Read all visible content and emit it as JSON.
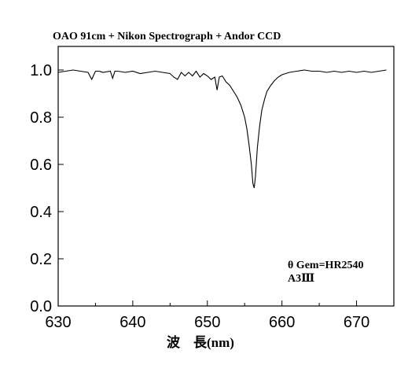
{
  "chart_data": {
    "type": "line",
    "title": "OAO 91cm + Nikon Spectrograph + Andor CCD",
    "xlabel": "波　長(nm)",
    "ylabel": "",
    "xlim": [
      630,
      675
    ],
    "ylim": [
      0.0,
      1.1
    ],
    "xticks": [
      630,
      640,
      650,
      660,
      670
    ],
    "yticks": [
      0.0,
      0.2,
      0.4,
      0.6,
      0.8,
      1.0
    ],
    "xtick_labels": [
      "630",
      "640",
      "650",
      "660",
      "670"
    ],
    "ytick_labels": [
      "0.0",
      "0.2",
      "0.4",
      "0.6",
      "0.8",
      "1.0"
    ],
    "grid": false,
    "annotations": [
      "θ Gem=HR2540",
      "A3Ⅲ"
    ],
    "series": [
      {
        "x": [
          630.0,
          631.0,
          632.0,
          633.0,
          634.0,
          634.5,
          635.0,
          635.5,
          636.0,
          637.0,
          637.3,
          637.6,
          638.0,
          639.0,
          640.0,
          641.0,
          642.0,
          643.0,
          644.0,
          645.0,
          645.5,
          646.0,
          646.5,
          647.0,
          647.5,
          648.0,
          648.5,
          649.0,
          649.5,
          650.0,
          650.5,
          651.0,
          651.3,
          651.6,
          652.0,
          652.5,
          653.0,
          653.5,
          654.0,
          654.5,
          655.0,
          655.3,
          655.6,
          655.9,
          656.1,
          656.28,
          656.45,
          656.7,
          657.0,
          657.3,
          657.7,
          658.0,
          658.5,
          659.0,
          659.5,
          660.0,
          661.0,
          662.0,
          663.0,
          664.0,
          665.0,
          666.0,
          667.0,
          668.0,
          669.0,
          670.0,
          671.0,
          672.0,
          673.0,
          674.0
        ],
        "y": [
          0.99,
          0.995,
          1.0,
          0.995,
          0.99,
          0.96,
          0.995,
          0.995,
          0.99,
          0.995,
          0.965,
          0.995,
          0.995,
          0.99,
          0.995,
          0.985,
          0.99,
          0.995,
          0.99,
          0.985,
          0.97,
          0.96,
          0.99,
          0.975,
          0.99,
          0.975,
          0.995,
          0.97,
          0.985,
          0.975,
          0.96,
          0.97,
          0.915,
          0.97,
          0.975,
          0.95,
          0.935,
          0.91,
          0.885,
          0.85,
          0.8,
          0.75,
          0.68,
          0.6,
          0.52,
          0.5,
          0.55,
          0.67,
          0.76,
          0.83,
          0.88,
          0.91,
          0.935,
          0.955,
          0.97,
          0.98,
          0.99,
          0.995,
          1.0,
          0.995,
          0.995,
          0.99,
          0.995,
          0.99,
          0.995,
          0.99,
          0.995,
          0.99,
          0.995,
          1.0
        ]
      }
    ]
  }
}
